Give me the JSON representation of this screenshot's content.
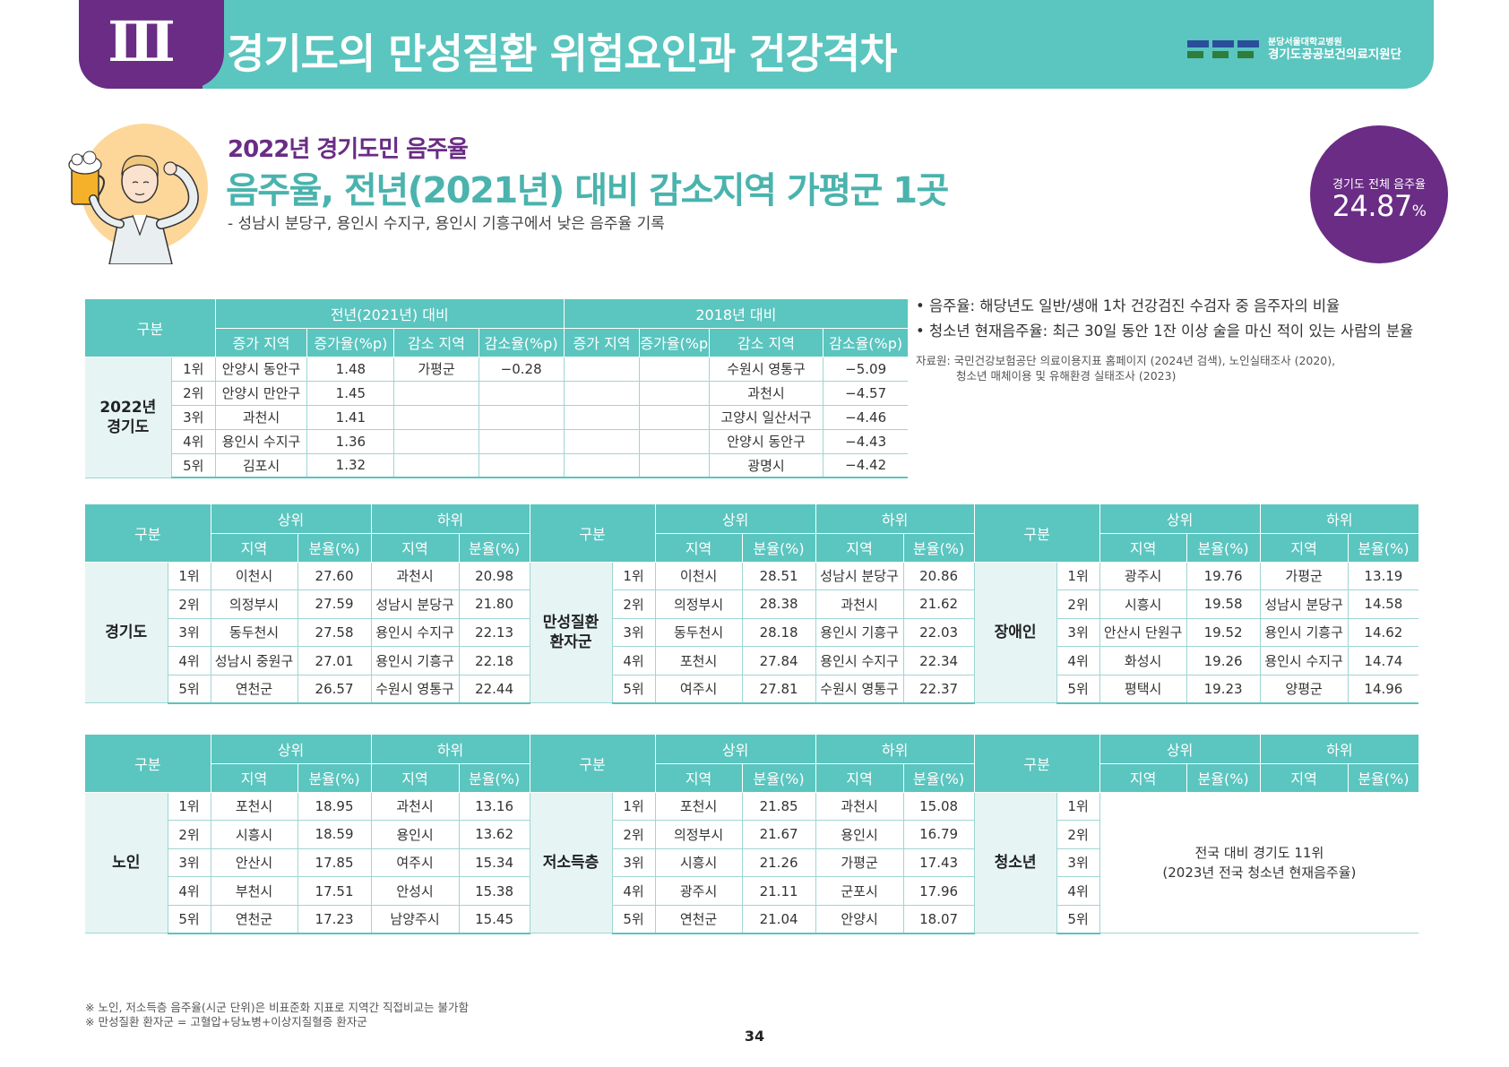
{
  "header": {
    "section_num": "Ⅲ",
    "title": "경기도의 만성질환 위험요인과 건강격차",
    "logo_small": "분당서울대학교병원",
    "logo_big": "경기도공공보건의료지원단"
  },
  "intro": {
    "subtitle": "2022년 경기도민 음주율",
    "title": "음주율, 전년(2021년) 대비 감소지역 가평군 1곳",
    "desc": "- 성남시 분당구, 용인시 수지구, 용인시 기흥구에서 낮은 음주율 기록",
    "rate_label": "경기도 전체 음주율",
    "rate_value": "24.87",
    "rate_unit": "%"
  },
  "notes": {
    "n1": "• 음주율: 해당년도 일반/생애 1차 건강검진 수검자 중 음주자의 비율",
    "n2": "• 청소년 현재음주율: 최근 30일 동안 1잔 이상 술을 마신 적이 있는 사람의 분율",
    "source1": "자료원: 국민건강보험공단 의료이용지표 홈페이지 (2024년 검색), 노인실태조사 (2020),",
    "source2": "청소년 매체이용 및 유해환경 실태조사 (2023)"
  },
  "table1": {
    "h_gubun": "구분",
    "h_prev": "전년(2021년) 대비",
    "h_2018": "2018년 대비",
    "cols": [
      "증가 지역",
      "증가율(%p)",
      "감소 지역",
      "감소율(%p)",
      "증가 지역",
      "증가율(%p)",
      "감소 지역",
      "감소율(%p)"
    ],
    "group": "2022년\n경기도",
    "rows": [
      [
        "1위",
        "안양시 동안구",
        "1.48",
        "가평군",
        "−0.28",
        "",
        "",
        "수원시 영통구",
        "−5.09"
      ],
      [
        "2위",
        "안양시 만안구",
        "1.45",
        "",
        "",
        "",
        "",
        "과천시",
        "−4.57"
      ],
      [
        "3위",
        "과천시",
        "1.41",
        "",
        "",
        "",
        "",
        "고양시 일산서구",
        "−4.46"
      ],
      [
        "4위",
        "용인시 수지구",
        "1.36",
        "",
        "",
        "",
        "",
        "안양시 동안구",
        "−4.43"
      ],
      [
        "5위",
        "김포시",
        "1.32",
        "",
        "",
        "",
        "",
        "광명시",
        "−4.42"
      ]
    ]
  },
  "labels": {
    "gubun": "구분",
    "upper": "상위",
    "lower": "하위",
    "region": "지역",
    "rate": "분율(%)"
  },
  "table2": [
    {
      "group": "경기도",
      "rows": [
        [
          "1위",
          "이천시",
          "27.60",
          "과천시",
          "20.98"
        ],
        [
          "2위",
          "의정부시",
          "27.59",
          "성남시 분당구",
          "21.80"
        ],
        [
          "3위",
          "동두천시",
          "27.58",
          "용인시 수지구",
          "22.13"
        ],
        [
          "4위",
          "성남시 중원구",
          "27.01",
          "용인시 기흥구",
          "22.18"
        ],
        [
          "5위",
          "연천군",
          "26.57",
          "수원시 영통구",
          "22.44"
        ]
      ]
    },
    {
      "group": "만성질환\n환자군",
      "rows": [
        [
          "1위",
          "이천시",
          "28.51",
          "성남시 분당구",
          "20.86"
        ],
        [
          "2위",
          "의정부시",
          "28.38",
          "과천시",
          "21.62"
        ],
        [
          "3위",
          "동두천시",
          "28.18",
          "용인시 기흥구",
          "22.03"
        ],
        [
          "4위",
          "포천시",
          "27.84",
          "용인시 수지구",
          "22.34"
        ],
        [
          "5위",
          "여주시",
          "27.81",
          "수원시 영통구",
          "22.37"
        ]
      ]
    },
    {
      "group": "장애인",
      "rows": [
        [
          "1위",
          "광주시",
          "19.76",
          "가평군",
          "13.19"
        ],
        [
          "2위",
          "시흥시",
          "19.58",
          "성남시 분당구",
          "14.58"
        ],
        [
          "3위",
          "안산시 단원구",
          "19.52",
          "용인시 기흥구",
          "14.62"
        ],
        [
          "4위",
          "화성시",
          "19.26",
          "용인시 수지구",
          "14.74"
        ],
        [
          "5위",
          "평택시",
          "19.23",
          "양평군",
          "14.96"
        ]
      ]
    }
  ],
  "table3": [
    {
      "group": "노인",
      "rows": [
        [
          "1위",
          "포천시",
          "18.95",
          "과천시",
          "13.16"
        ],
        [
          "2위",
          "시흥시",
          "18.59",
          "용인시",
          "13.62"
        ],
        [
          "3위",
          "안산시",
          "17.85",
          "여주시",
          "15.34"
        ],
        [
          "4위",
          "부천시",
          "17.51",
          "안성시",
          "15.38"
        ],
        [
          "5위",
          "연천군",
          "17.23",
          "남양주시",
          "15.45"
        ]
      ]
    },
    {
      "group": "저소득층",
      "rows": [
        [
          "1위",
          "포천시",
          "21.85",
          "과천시",
          "15.08"
        ],
        [
          "2위",
          "의정부시",
          "21.67",
          "용인시",
          "16.79"
        ],
        [
          "3위",
          "시흥시",
          "21.26",
          "가평군",
          "17.43"
        ],
        [
          "4위",
          "광주시",
          "21.11",
          "군포시",
          "17.96"
        ],
        [
          "5위",
          "연천군",
          "21.04",
          "안양시",
          "18.07"
        ]
      ]
    },
    {
      "group": "청소년",
      "ranks": [
        "1위",
        "2위",
        "3위",
        "4위",
        "5위"
      ],
      "note1": "전국 대비 경기도 11위",
      "note2": "(2023년 전국 청소년 현재음주율)"
    }
  ],
  "footnotes": {
    "f1": "※ 노인, 저소득층 음주율(시군 단위)은 비표준화 지표로 지역간 직접비교는 불가함",
    "f2": "※ 만성질환 환자군 = 고혈압+당뇨병+이상지질혈증 환자군"
  },
  "page_number": "34"
}
